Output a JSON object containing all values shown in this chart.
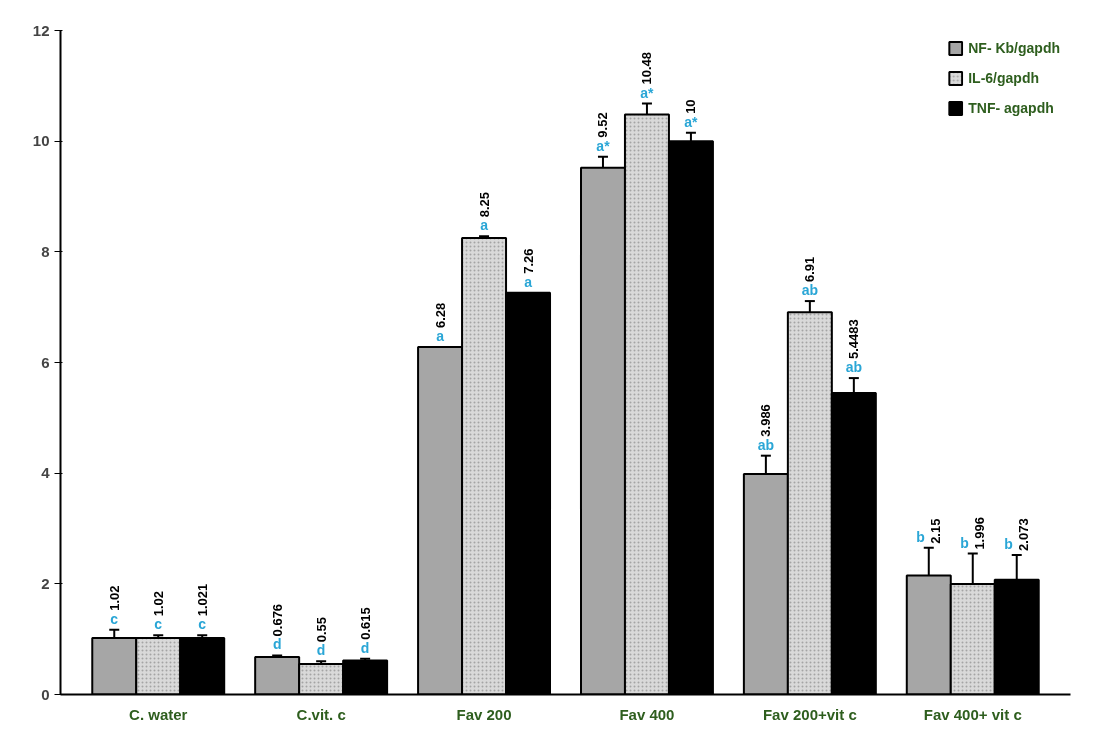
{
  "chart_data": {
    "type": "bar",
    "categories": [
      "C. water",
      "C.vit. c",
      "Fav 200",
      "Fav 400",
      "Fav 200+vit c",
      "Fav 400+ vit c"
    ],
    "series": [
      {
        "name": "NF- Kb/gapdh",
        "color": "#a6a6a6",
        "values": [
          1.02,
          0.676,
          6.28,
          9.52,
          3.986,
          2.15
        ],
        "value_labels": [
          "1.02",
          "0.676",
          "6.28",
          "9.52",
          "3.986",
          "2.15"
        ],
        "errors": [
          0.15,
          0.03,
          null,
          0.2,
          0.33,
          0.5
        ]
      },
      {
        "name": "IL-6/gapdh",
        "color": "#d9d9d9",
        "values": [
          1.02,
          0.55,
          8.25,
          10.48,
          6.91,
          1.996
        ],
        "value_labels": [
          "1.02",
          "0.55",
          "8.25",
          "10.48",
          "6.91",
          "1.996"
        ],
        "errors": [
          0.05,
          0.05,
          0.03,
          0.2,
          0.2,
          0.55
        ]
      },
      {
        "name": "TNF- agapdh",
        "color": "#000000",
        "values": [
          1.021,
          0.615,
          7.26,
          10,
          5.4483,
          2.073
        ],
        "value_labels": [
          "1.021",
          "0.615",
          "7.26",
          "10",
          "5.4483",
          "2.073"
        ],
        "errors": [
          0.05,
          0.03,
          null,
          0.15,
          0.27,
          0.45
        ]
      }
    ],
    "ylim": [
      0,
      12
    ],
    "yticks": [
      0,
      2,
      4,
      6,
      8,
      10,
      12
    ],
    "grid": false,
    "legend": "top right",
    "annotations": [
      "c",
      "c",
      "c",
      "d",
      "d",
      "d",
      "a",
      "a",
      "a",
      "a*",
      "a*",
      "a*",
      "ab",
      "ab",
      "ab",
      "b",
      "b",
      "b"
    ]
  }
}
